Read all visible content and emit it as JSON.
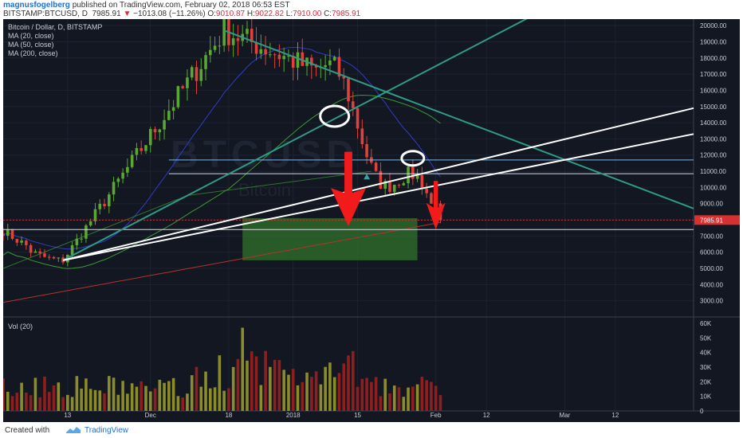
{
  "header": {
    "author": "magnusfogelberg",
    "published_text": "published on TradingView.com, February 02, 2018 06:53 EST",
    "symbol": "BITSTAMP:BTCUSD, D",
    "last": "7985.91",
    "arrow": "▼",
    "change": "−1013.08 (−11.26%)",
    "o_label": "O:",
    "o": "9010.87",
    "h_label": "H:",
    "h": "9022.82",
    "l_label": "L:",
    "l": "7910.00",
    "c_label": "C:",
    "c": "7985.91"
  },
  "legend": {
    "title": "Bitcoin / Dollar, D, BITSTAMP",
    "ma20": "MA (20, close)",
    "ma50": "MA (50, close)",
    "ma200": "MA (200, close)",
    "volume": "Vol (20)"
  },
  "watermark": {
    "ticker": "BTCUSD",
    "name": "Bitcoin"
  },
  "footer": {
    "created": "Created with",
    "brand": "TradingView"
  },
  "colors": {
    "background": "#131722",
    "up": "#5aa832",
    "down": "#e0413a",
    "ma20": "#2e3dc2",
    "ma50": "#3a9a34",
    "ma200": "#b3332c",
    "trendline_teal": "#2f9b86",
    "trendline_white": "#ffffff",
    "arrow": "#f21b1b",
    "zone": "#2f6d2b",
    "price_tag": "#d83030"
  },
  "chart_data": {
    "type": "candlestick",
    "price_axis": {
      "ticks": [
        "20000.00",
        "19000.00",
        "18000.00",
        "17000.00",
        "16000.00",
        "15000.00",
        "14000.00",
        "13000.00",
        "12000.00",
        "11000.00",
        "10000.00",
        "9000.00",
        "8000.00",
        "7000.00",
        "6000.00",
        "5000.00",
        "4000.00",
        "3000.00"
      ],
      "range": [
        2000,
        20400
      ],
      "current_price_label": "7985.91",
      "current_price": 7985.91
    },
    "volume_axis": {
      "ticks": [
        "60K",
        "50K",
        "40K",
        "30K",
        "20K",
        "10K",
        "0"
      ],
      "range": [
        0,
        60000
      ]
    },
    "time_axis": {
      "labels": [
        "13",
        "Dec",
        "18",
        "2018",
        "15",
        "Feb",
        "12",
        "Mar",
        "12"
      ],
      "range": [
        "2017-10-30",
        "2018-03-29"
      ],
      "label_dates": [
        "2017-11-13",
        "2017-12-01",
        "2017-12-18",
        "2018-01-01",
        "2018-01-15",
        "2018-02-01",
        "2018-02-12",
        "2018-03-01",
        "2018-03-12"
      ]
    },
    "key_points": [
      {
        "date": "2017-11-12",
        "price": 5500
      },
      {
        "date": "2017-12-17",
        "price": 19700
      },
      {
        "date": "2018-01-06",
        "price": 17200
      },
      {
        "date": "2018-02-02",
        "price": 7985.91
      }
    ],
    "resistance_levels": [
      11700,
      10850
    ],
    "support_level": 7400,
    "target_zone": {
      "from": "2017-12-21",
      "to": "2018-01-28",
      "low": 5500,
      "high": 8100
    },
    "ohlc_last": {
      "open": 9010.87,
      "high": 9022.82,
      "low": 7910.0,
      "close": 7985.91,
      "change": -1013.08,
      "change_pct": -11.26
    }
  }
}
